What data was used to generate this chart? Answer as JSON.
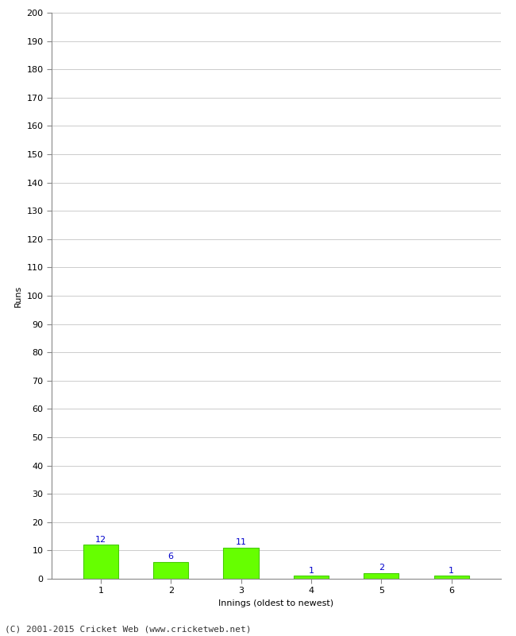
{
  "xlabel": "Innings (oldest to newest)",
  "ylabel": "Runs",
  "categories": [
    1,
    2,
    3,
    4,
    5,
    6
  ],
  "values": [
    12,
    6,
    11,
    1,
    2,
    1
  ],
  "bar_color": "#66ff00",
  "bar_edge_color": "#44cc00",
  "ylim": [
    0,
    200
  ],
  "ytick_step": 10,
  "annotation_color": "#0000cc",
  "annotation_fontsize": 8,
  "xlabel_fontsize": 8,
  "ylabel_fontsize": 8,
  "tick_fontsize": 8,
  "footer": "(C) 2001-2015 Cricket Web (www.cricketweb.net)",
  "footer_fontsize": 8,
  "background_color": "#ffffff",
  "grid_color": "#cccccc",
  "spine_color": "#888888"
}
